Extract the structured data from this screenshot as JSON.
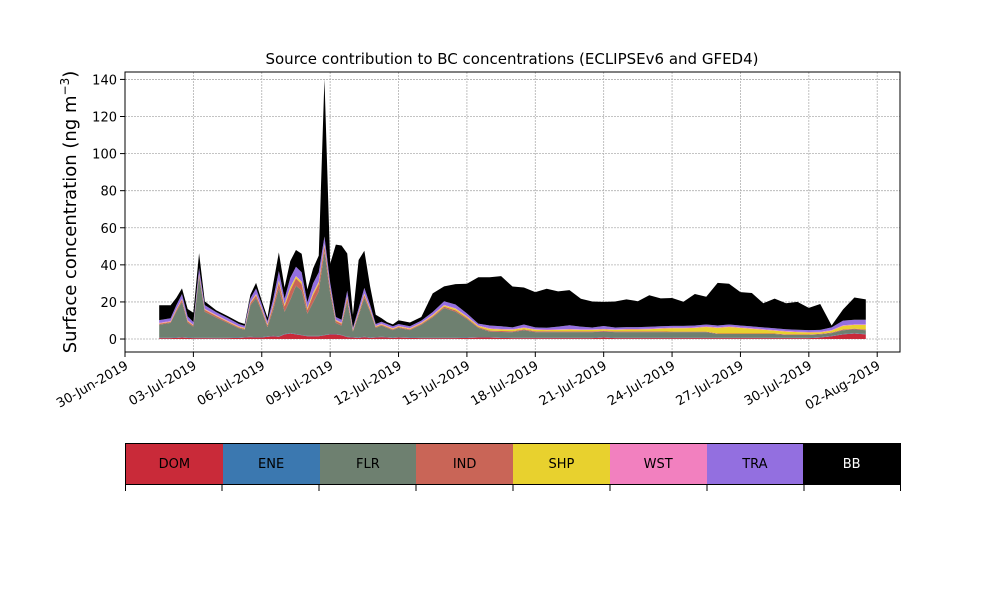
{
  "chart_data": {
    "type": "area",
    "stacked": true,
    "title": "Source contribution to BC concentrations (ECLIPSEv6 and GFED4)",
    "ylabel": "Surface concentration (ng m",
    "ylabel_sup": "−3",
    "ylabel_close": ")",
    "xlabel": "",
    "ylim": [
      -7,
      144
    ],
    "yticks": [
      0,
      20,
      40,
      60,
      80,
      100,
      120,
      140
    ],
    "xlim": [
      "2019-06-30",
      "2019-08-03"
    ],
    "xticks": [
      "2019-06-30",
      "2019-07-03",
      "2019-07-06",
      "2019-07-09",
      "2019-07-12",
      "2019-07-15",
      "2019-07-18",
      "2019-07-21",
      "2019-07-24",
      "2019-07-27",
      "2019-07-30",
      "2019-08-02"
    ],
    "xtick_labels": [
      "30-Jun-2019",
      "03-Jul-2019",
      "06-Jul-2019",
      "09-Jul-2019",
      "12-Jul-2019",
      "15-Jul-2019",
      "18-Jul-2019",
      "21-Jul-2019",
      "24-Jul-2019",
      "27-Jul-2019",
      "30-Jul-2019",
      "02-Aug-2019"
    ],
    "grid": true,
    "x": [
      "2019-07-01 12:00",
      "2019-07-02 00:00",
      "2019-07-02 06:00",
      "2019-07-02 12:00",
      "2019-07-02 18:00",
      "2019-07-03 00:00",
      "2019-07-03 06:00",
      "2019-07-03 12:00",
      "2019-07-04 00:00",
      "2019-07-04 12:00",
      "2019-07-05 00:00",
      "2019-07-05 06:00",
      "2019-07-05 12:00",
      "2019-07-05 18:00",
      "2019-07-06 00:00",
      "2019-07-06 06:00",
      "2019-07-06 12:00",
      "2019-07-06 18:00",
      "2019-07-07 00:00",
      "2019-07-07 06:00",
      "2019-07-07 12:00",
      "2019-07-07 18:00",
      "2019-07-08 00:00",
      "2019-07-08 06:00",
      "2019-07-08 12:00",
      "2019-07-08 18:00",
      "2019-07-09 00:00",
      "2019-07-09 06:00",
      "2019-07-09 12:00",
      "2019-07-09 18:00",
      "2019-07-10 00:00",
      "2019-07-10 06:00",
      "2019-07-10 12:00",
      "2019-07-10 18:00",
      "2019-07-11 00:00",
      "2019-07-11 06:00",
      "2019-07-11 12:00",
      "2019-07-11 18:00",
      "2019-07-12 00:00",
      "2019-07-12 12:00",
      "2019-07-13 00:00",
      "2019-07-13 12:00",
      "2019-07-14 00:00",
      "2019-07-14 12:00",
      "2019-07-15 00:00",
      "2019-07-15 12:00",
      "2019-07-16 00:00",
      "2019-07-16 12:00",
      "2019-07-17 00:00",
      "2019-07-17 12:00",
      "2019-07-18 00:00",
      "2019-07-18 12:00",
      "2019-07-19 00:00",
      "2019-07-19 12:00",
      "2019-07-20 00:00",
      "2019-07-20 12:00",
      "2019-07-21 00:00",
      "2019-07-21 12:00",
      "2019-07-22 00:00",
      "2019-07-22 12:00",
      "2019-07-23 00:00",
      "2019-07-23 12:00",
      "2019-07-24 00:00",
      "2019-07-24 12:00",
      "2019-07-25 00:00",
      "2019-07-25 12:00",
      "2019-07-26 00:00",
      "2019-07-26 12:00",
      "2019-07-27 00:00",
      "2019-07-27 12:00",
      "2019-07-28 00:00",
      "2019-07-28 12:00",
      "2019-07-29 00:00",
      "2019-07-29 12:00",
      "2019-07-30 00:00",
      "2019-07-30 12:00",
      "2019-07-31 00:00",
      "2019-07-31 12:00",
      "2019-08-01 00:00",
      "2019-08-01 12:00"
    ],
    "series": [
      {
        "name": "DOM",
        "color": "#c92a39",
        "values": [
          0.5,
          0.5,
          0.6,
          0.8,
          0.6,
          0.5,
          0.5,
          0.5,
          0.4,
          0.5,
          0.6,
          0.8,
          1.0,
          0.8,
          0.8,
          1.2,
          1.5,
          1.2,
          2.5,
          3.0,
          2.5,
          2.0,
          1.5,
          1.5,
          1.5,
          2.0,
          2.5,
          2.5,
          2.0,
          1.0,
          0.8,
          0.6,
          1.0,
          0.6,
          0.8,
          1.0,
          0.8,
          0.6,
          0.8,
          0.6,
          0.5,
          0.5,
          0.5,
          0.5,
          0.6,
          0.8,
          0.8,
          0.6,
          0.5,
          0.5,
          0.5,
          0.5,
          0.5,
          0.5,
          0.5,
          0.5,
          0.8,
          0.5,
          0.5,
          0.5,
          0.5,
          0.5,
          0.5,
          0.5,
          0.5,
          0.5,
          0.5,
          0.5,
          0.5,
          0.5,
          0.5,
          0.5,
          0.5,
          0.5,
          0.5,
          0.8,
          1.5,
          2.5,
          3.0,
          2.5
        ]
      },
      {
        "name": "ENE",
        "color": "#3b78b0",
        "values": [
          0.2,
          0.2,
          0.2,
          0.2,
          0.2,
          0.2,
          0.2,
          0.2,
          0.2,
          0.2,
          0.2,
          0.2,
          0.2,
          0.2,
          0.2,
          0.2,
          0.2,
          0.2,
          0.2,
          0.2,
          0.2,
          0.2,
          0.2,
          0.2,
          0.2,
          0.2,
          0.2,
          0.2,
          0.2,
          0.2,
          0.2,
          0.2,
          0.2,
          0.2,
          0.2,
          0.2,
          0.2,
          0.2,
          0.2,
          0.2,
          0.2,
          0.2,
          0.2,
          0.2,
          0.2,
          0.2,
          0.2,
          0.2,
          0.2,
          0.2,
          0.2,
          0.2,
          0.2,
          0.2,
          0.2,
          0.2,
          0.2,
          0.2,
          0.2,
          0.2,
          0.2,
          0.2,
          0.2,
          0.2,
          0.2,
          0.2,
          0.2,
          0.2,
          0.2,
          0.2,
          0.2,
          0.2,
          0.2,
          0.2,
          0.2,
          0.2,
          0.2,
          0.2,
          0.2,
          0.2
        ]
      },
      {
        "name": "FLR",
        "color": "#6e8070",
        "values": [
          7,
          8,
          14,
          19,
          8,
          6,
          33,
          14,
          11,
          8,
          5,
          4,
          17,
          21,
          14,
          5,
          14,
          26,
          12,
          18,
          26,
          24,
          12,
          18,
          24,
          45,
          22,
          6,
          5,
          19,
          3,
          12,
          21,
          14,
          5,
          6,
          5,
          4,
          5,
          4,
          7,
          11,
          16,
          14,
          10,
          5,
          3,
          3,
          3,
          4,
          3,
          3,
          3,
          3,
          3,
          3,
          3,
          3,
          3,
          3,
          3,
          3,
          3,
          3,
          3,
          3,
          2,
          2,
          2,
          2,
          2,
          2,
          1.5,
          1.5,
          1.5,
          1.5,
          1.5,
          2,
          2,
          2
        ]
      },
      {
        "name": "IND",
        "color": "#c96557",
        "values": [
          0.5,
          0.5,
          0.8,
          1.2,
          0.8,
          0.5,
          1.0,
          1.0,
          0.8,
          0.6,
          0.5,
          0.5,
          1.0,
          1.5,
          1.0,
          1.0,
          2.0,
          3.0,
          3.0,
          5.0,
          4.0,
          3.5,
          2.0,
          4.0,
          4.0,
          3.0,
          2.0,
          1.0,
          1.0,
          2.0,
          0.5,
          1.0,
          1.5,
          1.0,
          0.5,
          0.5,
          0.5,
          0.5,
          0.5,
          0.5,
          0.5,
          0.6,
          0.8,
          0.8,
          0.6,
          0.5,
          0.5,
          0.5,
          0.5,
          0.5,
          0.5,
          0.5,
          0.4,
          0.4,
          0.4,
          0.4,
          0.4,
          0.4,
          0.4,
          0.4,
          0.4,
          0.4,
          0.3,
          0.3,
          0.3,
          0.3,
          0.3,
          0.3,
          0.3,
          0.3,
          0.3,
          0.3,
          0.3,
          0.3,
          0.3,
          0.3,
          0.3,
          0.4,
          0.4,
          0.4
        ]
      },
      {
        "name": "SHP",
        "color": "#e8d12e",
        "values": [
          0.2,
          0.2,
          0.3,
          0.3,
          0.3,
          0.2,
          0.3,
          0.3,
          0.3,
          0.3,
          0.3,
          0.3,
          0.4,
          0.5,
          0.4,
          0.4,
          0.6,
          1.0,
          0.8,
          1.5,
          1.0,
          1.0,
          0.8,
          1.0,
          1.0,
          0.8,
          0.6,
          0.4,
          0.4,
          0.6,
          0.3,
          0.5,
          0.6,
          0.5,
          0.3,
          0.3,
          0.3,
          0.3,
          0.3,
          0.3,
          0.4,
          0.5,
          0.6,
          0.8,
          0.6,
          0.5,
          1.0,
          0.8,
          0.8,
          0.8,
          0.8,
          0.6,
          0.8,
          1.0,
          0.8,
          0.8,
          0.8,
          0.8,
          1.0,
          1.0,
          1.2,
          1.5,
          1.8,
          1.8,
          2.0,
          2.5,
          3.0,
          3.5,
          3.0,
          2.5,
          2.0,
          1.5,
          1.5,
          1.2,
          1.0,
          0.8,
          1.0,
          2.0,
          2.0,
          2.5
        ]
      },
      {
        "name": "WST",
        "color": "#f280bf",
        "values": [
          0.3,
          0.3,
          0.3,
          0.3,
          0.3,
          0.3,
          0.3,
          0.3,
          0.3,
          0.3,
          0.3,
          0.3,
          0.3,
          0.3,
          0.3,
          0.3,
          0.3,
          0.3,
          0.3,
          0.3,
          0.3,
          0.3,
          0.3,
          0.3,
          0.3,
          0.3,
          0.3,
          0.3,
          0.3,
          0.3,
          0.3,
          0.3,
          0.3,
          0.3,
          0.3,
          0.3,
          0.3,
          0.3,
          0.3,
          0.3,
          0.3,
          0.3,
          0.3,
          0.3,
          0.3,
          0.3,
          0.3,
          0.3,
          0.3,
          0.3,
          0.3,
          0.3,
          0.3,
          0.3,
          0.3,
          0.3,
          0.3,
          0.3,
          0.3,
          0.3,
          0.3,
          0.3,
          0.3,
          0.3,
          0.3,
          0.3,
          0.3,
          0.3,
          0.3,
          0.3,
          0.3,
          0.3,
          0.3,
          0.3,
          0.3,
          0.3,
          0.3,
          0.3,
          0.3,
          0.3
        ]
      },
      {
        "name": "TRA",
        "color": "#936fe0",
        "values": [
          1.5,
          1.5,
          2.0,
          2.5,
          2.0,
          1.5,
          3.0,
          2.0,
          1.5,
          1.5,
          1.2,
          1.0,
          2.0,
          3.0,
          2.0,
          1.5,
          3.0,
          5.0,
          3.0,
          5.0,
          5.0,
          5.0,
          3.0,
          5.0,
          5.0,
          4.0,
          3.0,
          1.5,
          1.5,
          3.0,
          1.0,
          2.0,
          3.0,
          2.0,
          1.0,
          1.0,
          1.0,
          1.0,
          1.0,
          1.0,
          1.0,
          1.5,
          2.0,
          2.0,
          1.5,
          1.0,
          1.5,
          1.5,
          1.0,
          1.5,
          1.0,
          1.0,
          1.5,
          2.0,
          1.5,
          1.0,
          1.5,
          1.0,
          1.0,
          1.0,
          1.0,
          1.0,
          1.0,
          1.0,
          1.0,
          1.0,
          1.0,
          1.0,
          1.0,
          1.0,
          1.0,
          1.0,
          1.0,
          1.0,
          1.0,
          1.0,
          1.5,
          2.5,
          2.5,
          2.5
        ]
      },
      {
        "name": "BB",
        "color": "#000000",
        "values": [
          8,
          7,
          4,
          3,
          4,
          5,
          8,
          2,
          1,
          1,
          1,
          1,
          2,
          3,
          2,
          2,
          8,
          10,
          6,
          9,
          9,
          10,
          7,
          8,
          9,
          85,
          10,
          39,
          40,
          20,
          7,
          26,
          20,
          10,
          5,
          2,
          1,
          1,
          2,
          2,
          2,
          10,
          8,
          11,
          16,
          25,
          26,
          27,
          22,
          20,
          19,
          21,
          19,
          19,
          15,
          14,
          13,
          14,
          15,
          14,
          17,
          15,
          15,
          13,
          17,
          15,
          23,
          22,
          18,
          18,
          13,
          16,
          14,
          15,
          12,
          14,
          1,
          6,
          12,
          11
        ]
      }
    ]
  },
  "legend": {
    "items": [
      {
        "label": "DOM",
        "color": "#c92a39",
        "text_color": "#000000"
      },
      {
        "label": "ENE",
        "color": "#3b78b0",
        "text_color": "#000000"
      },
      {
        "label": "FLR",
        "color": "#6e8070",
        "text_color": "#000000"
      },
      {
        "label": "IND",
        "color": "#c96557",
        "text_color": "#000000"
      },
      {
        "label": "SHP",
        "color": "#e8d12e",
        "text_color": "#000000"
      },
      {
        "label": "WST",
        "color": "#f280bf",
        "text_color": "#000000"
      },
      {
        "label": "TRA",
        "color": "#936fe0",
        "text_color": "#000000"
      },
      {
        "label": "BB",
        "color": "#000000",
        "text_color": "#ffffff"
      }
    ]
  }
}
